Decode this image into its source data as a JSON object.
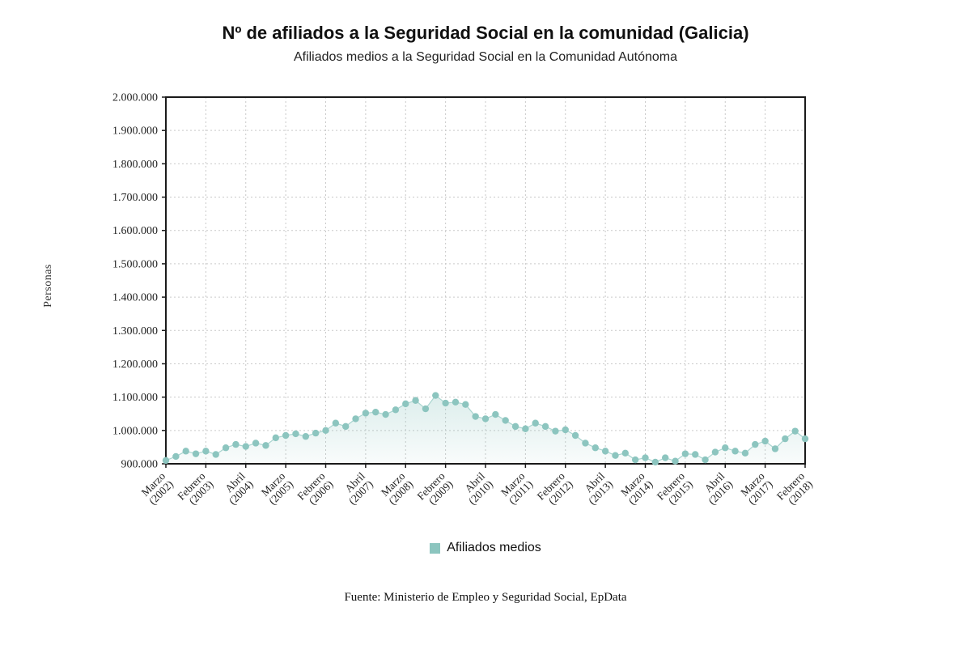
{
  "title": "Nº de afiliados a la Seguridad Social en la comunidad (Galicia)",
  "subtitle": "Afiliados medios a la Seguridad Social en la Comunidad Autónoma",
  "source": "Fuente: Ministerio de Empleo y Seguridad Social, EpData",
  "legend": {
    "label": "Afiliados medios"
  },
  "chart_data": {
    "type": "area",
    "title": "Nº de afiliados a la Seguridad Social en la comunidad (Galicia)",
    "subtitle": "Afiliados medios a la Seguridad Social en la Comunidad Autónoma",
    "xlabel": "",
    "ylabel": "Personas",
    "ylim": [
      900000,
      2000000
    ],
    "grid": true,
    "legend_position": "bottom",
    "ytick_values": [
      900000,
      1000000,
      1100000,
      1200000,
      1300000,
      1400000,
      1500000,
      1600000,
      1700000,
      1800000,
      1900000,
      2000000
    ],
    "ytick_labels": [
      "900.000",
      "1.000.000",
      "1.100.000",
      "1.200.000",
      "1.300.000",
      "1.400.000",
      "1.500.000",
      "1.600.000",
      "1.700.000",
      "1.800.000",
      "1.900.000",
      "2.000.000"
    ],
    "xtick_every": 4,
    "xtick_labels": [
      {
        "month": "Marzo",
        "year": "(2002)"
      },
      {
        "month": "Febrero",
        "year": "(2003)"
      },
      {
        "month": "Abril",
        "year": "(2004)"
      },
      {
        "month": "Marzo",
        "year": "(2005)"
      },
      {
        "month": "Febrero",
        "year": "(2006)"
      },
      {
        "month": "Abril",
        "year": "(2007)"
      },
      {
        "month": "Marzo",
        "year": "(2008)"
      },
      {
        "month": "Febrero",
        "year": "(2009)"
      },
      {
        "month": "Abril",
        "year": "(2010)"
      },
      {
        "month": "Marzo",
        "year": "(2011)"
      },
      {
        "month": "Febrero",
        "year": "(2012)"
      },
      {
        "month": "Abril",
        "year": "(2013)"
      },
      {
        "month": "Marzo",
        "year": "(2014)"
      },
      {
        "month": "Febrero",
        "year": "(2015)"
      },
      {
        "month": "Abril",
        "year": "(2016)"
      },
      {
        "month": "Marzo",
        "year": "(2017)"
      },
      {
        "month": "Febrero",
        "year": "(2018)"
      }
    ],
    "series": [
      {
        "name": "Afiliados medios",
        "values": [
          910000,
          922000,
          938000,
          930000,
          938000,
          928000,
          948000,
          958000,
          952000,
          962000,
          955000,
          978000,
          985000,
          990000,
          982000,
          992000,
          1000000,
          1022000,
          1012000,
          1035000,
          1052000,
          1055000,
          1048000,
          1062000,
          1080000,
          1090000,
          1065000,
          1105000,
          1082000,
          1085000,
          1078000,
          1042000,
          1035000,
          1048000,
          1030000,
          1012000,
          1005000,
          1022000,
          1012000,
          998000,
          1002000,
          985000,
          962000,
          948000,
          938000,
          925000,
          932000,
          912000,
          918000,
          905000,
          918000,
          908000,
          930000,
          928000,
          912000,
          935000,
          948000,
          938000,
          932000,
          958000,
          968000,
          945000,
          975000,
          998000,
          975000
        ]
      }
    ],
    "colors": {
      "marker": "#8cc5bf",
      "line": "#a8d4cf",
      "area_top": "rgba(140,197,191,0.30)",
      "area_bottom": "rgba(140,197,191,0.05)",
      "grid": "#c9c9c9",
      "frame": "#1a1a1a",
      "text": "#222222"
    }
  }
}
